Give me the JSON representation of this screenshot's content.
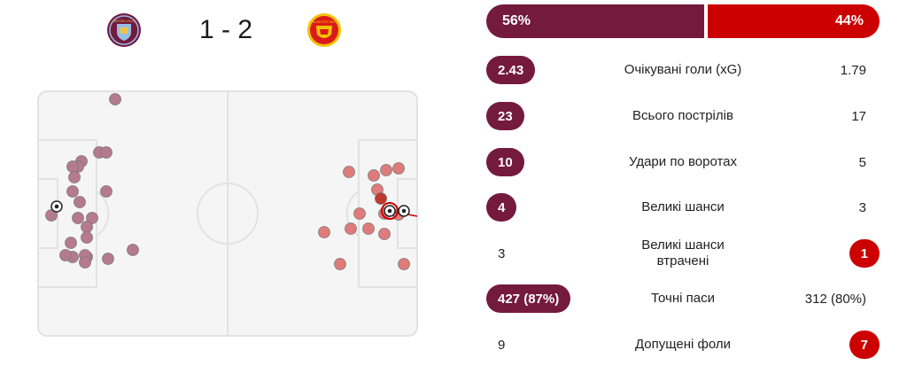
{
  "match": {
    "score": "1 - 2",
    "home": {
      "crest": "aston-villa-crest",
      "crest_text": "ASTON VILLA",
      "color": "#741a3d"
    },
    "away": {
      "crest": "manchester-united-crest",
      "crest_text": "MANCHESTER UNITED",
      "color": "#cc0000"
    }
  },
  "possession": {
    "home": "56%",
    "away": "44%",
    "home_fraction": 0.56
  },
  "stats": [
    {
      "label": "Очікувані голи (xG)",
      "home": "2.43",
      "away": "1.79",
      "highlight": "home"
    },
    {
      "label": "Всього пострілів",
      "home": "23",
      "away": "17",
      "highlight": "home"
    },
    {
      "label": "Удари по воротах",
      "home": "10",
      "away": "5",
      "highlight": "home"
    },
    {
      "label": "Великі шанси",
      "home": "4",
      "away": "3",
      "highlight": "home"
    },
    {
      "label": "Великі шанси втрачені",
      "home": "3",
      "away": "1",
      "highlight": "away"
    },
    {
      "label": "Точні паси",
      "home": "427 (87%)",
      "away": "312 (80%)",
      "highlight": "home"
    },
    {
      "label": "Допущені фоли",
      "home": "9",
      "away": "7",
      "highlight": "away"
    }
  ],
  "shotmap": {
    "home_color": "#b57a8e",
    "away_color": "#e07b7b",
    "goal_icon": "football-icon"
  }
}
